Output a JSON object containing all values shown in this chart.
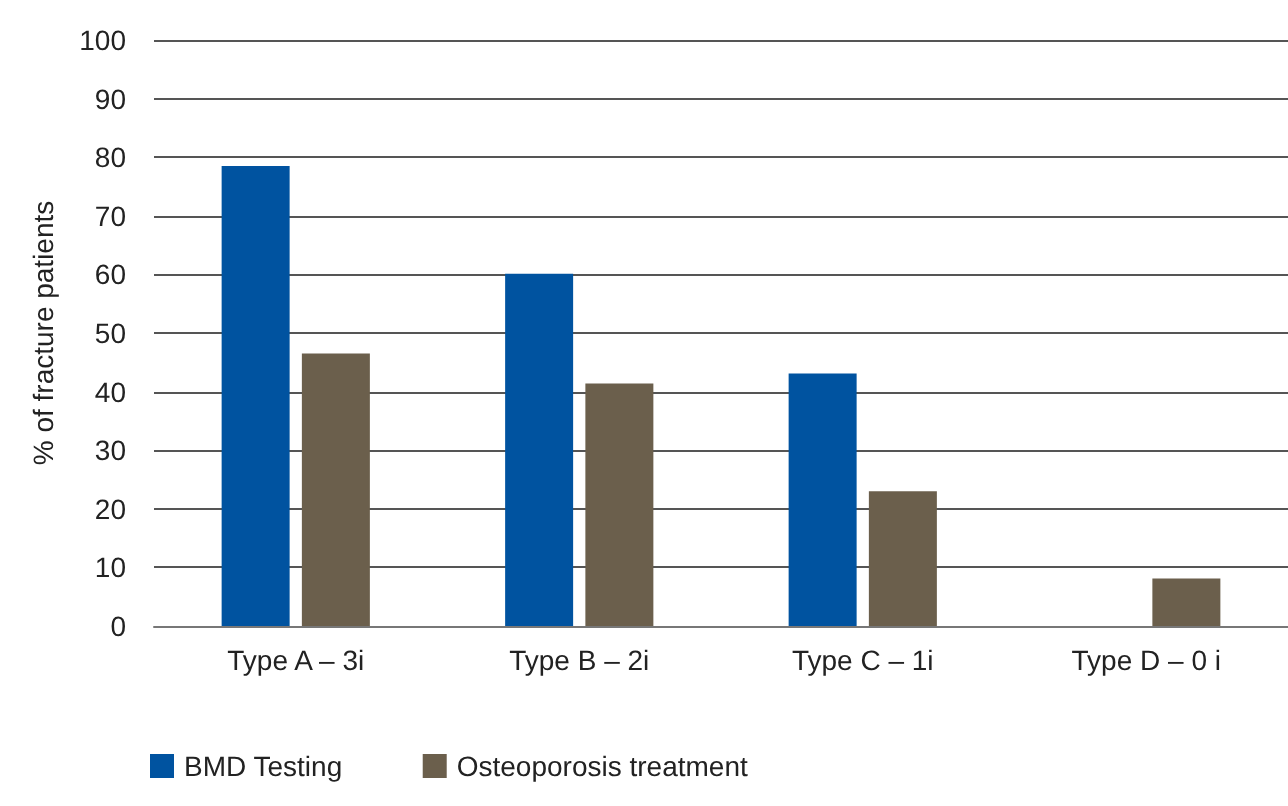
{
  "chart_data": {
    "type": "bar",
    "ylabel": "% of fracture patients",
    "categories": [
      "Type A – 3i",
      "Type B – 2i",
      "Type C – 1i",
      "Type D – 0 i"
    ],
    "series": [
      {
        "name": "BMD Testing",
        "color": "#0053a0",
        "values": [
          78.5,
          60.1,
          43.1,
          null
        ]
      },
      {
        "name": "Osteoporosis treatment",
        "color": "#6b5f4c",
        "values": [
          46.5,
          41.4,
          23.0,
          8.1
        ]
      }
    ],
    "ylim": [
      0,
      100
    ],
    "yticks": [
      0,
      10,
      20,
      30,
      40,
      50,
      60,
      70,
      80,
      90,
      100
    ],
    "grid": "y",
    "legend": "bottom left"
  }
}
